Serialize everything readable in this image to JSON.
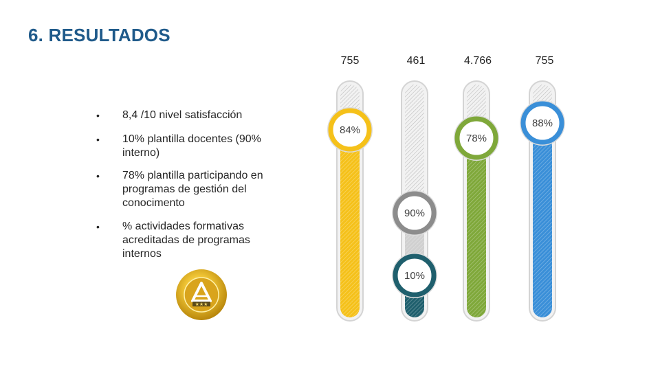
{
  "page": {
    "title": "6. RESULTADOS"
  },
  "bullets": [
    "8,4 /10 nivel satisfacción",
    "10% plantilla docentes (90% interno)",
    "78% plantilla participando en programas de gestión del conocimento",
    "% actividades formativas acreditadas de programas internos"
  ],
  "chart_data": {
    "type": "bar",
    "categories": [
      "755",
      "461",
      "4.766",
      "755"
    ],
    "series": [
      {
        "values": [
          84,
          90,
          78,
          88
        ],
        "colors": [
          "#f5c11a",
          "#8c8c8c",
          "#7fa83a",
          "#3a8fd8"
        ],
        "labels": [
          "84%",
          "90%",
          "78%",
          "88%"
        ]
      },
      {
        "values": [
          null,
          10,
          null,
          null
        ],
        "colors": [
          "",
          "#1f5f6d",
          "",
          ""
        ],
        "labels": [
          "",
          "10%",
          "",
          ""
        ]
      }
    ],
    "ylim": [
      0,
      100
    ]
  },
  "badge": {
    "icon": "accreditation-badge-icon",
    "color": "#e8b825"
  }
}
